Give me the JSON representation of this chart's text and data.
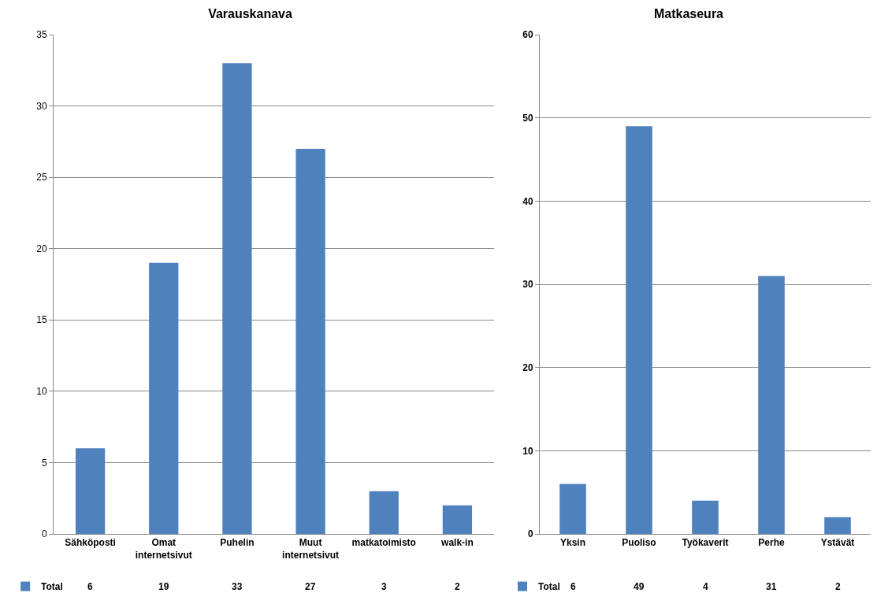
{
  "chart_data": [
    {
      "type": "bar",
      "title": "Varauskanava",
      "categories": [
        "Sähköposti",
        "Omat internetsivut",
        "Puhelin",
        "Muut internetsivut",
        "matkatoimisto",
        "walk-in"
      ],
      "series": [
        {
          "name": "Total",
          "color": "#4f81bd",
          "values": [
            6,
            19,
            33,
            27,
            3,
            2
          ]
        }
      ],
      "ylim": [
        0,
        35
      ],
      "yticks": [
        0,
        5,
        10,
        15,
        20,
        25,
        30,
        35
      ],
      "grid": "y",
      "legend": "bottom left",
      "data_labels": true
    },
    {
      "type": "bar",
      "title": "Matkaseura",
      "categories": [
        "Yksin",
        "Puoliso",
        "Työkaverit",
        "Perhe",
        "Ystävät"
      ],
      "series": [
        {
          "name": "Total",
          "color": "#4f81bd",
          "values": [
            6,
            49,
            4,
            31,
            2
          ]
        }
      ],
      "ylim": [
        0,
        60
      ],
      "yticks": [
        0,
        10,
        20,
        30,
        40,
        50,
        60
      ],
      "grid": "y",
      "legend": "bottom left",
      "data_labels": true
    }
  ]
}
